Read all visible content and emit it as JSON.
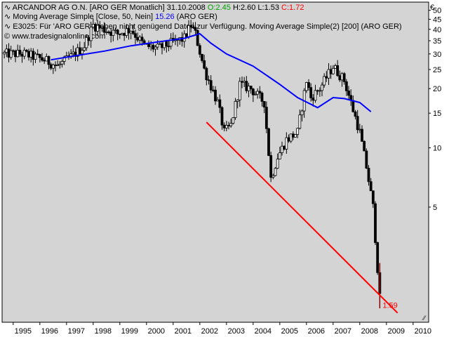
{
  "header": {
    "title_prefix": "ARCANDOR AG O.N. [ARO GER  Monatlich] 31.10.2008 ",
    "open_label": "O:2.45",
    "hl_label": " H:2.60 L:1.53 ",
    "close_label": "C:1.72",
    "ma_prefix": "Moving Average Simple [Close, 50, Nein] ",
    "ma_value": "15.26",
    "ma_suffix": " (ARO GER)",
    "warning_text": "E3025: Für 'ARO GER' stehen nicht genügend Daten zur Verfügung. Moving Average Simple(2) [200] (ARO GER)",
    "source_text": "© www.tradesignalonline.com",
    "currency_symbol": "€",
    "line_icon": "line-indicator-icon",
    "copyright_icon": "copyright-icon",
    "resize_icon": "resize-grip-icon"
  },
  "colors": {
    "background": "#d4d4d4",
    "candle_up_body": "#ffffff",
    "candle_down_body": "#000000",
    "moving_average": "#0000ff",
    "trendline": "#ff0000",
    "recent_price_line": "#8b0000",
    "open_green": "#00a000",
    "ma_blue": "#0000ff",
    "close_red": "#ff0000"
  },
  "chart_data": {
    "type": "candlestick",
    "y_scale": "log",
    "ylim": [
      1.3,
      55
    ],
    "xlim": [
      "1994-08",
      "2010-08"
    ],
    "x_ticks": [
      "1995",
      "1996",
      "1997",
      "1998",
      "1999",
      "2000",
      "2001",
      "2002",
      "2003",
      "2004",
      "2005",
      "2006",
      "2007",
      "2008",
      "2009",
      "2010"
    ],
    "y_ticks": [
      "50",
      "45",
      "40",
      "35",
      "30",
      "25",
      "20",
      "15",
      "10",
      "5"
    ],
    "last_price_label": "1.59",
    "anchor_points": [
      [
        "1994-09",
        30
      ],
      [
        "1995-06",
        30
      ],
      [
        "1996-03",
        28
      ],
      [
        "1996-09",
        26
      ],
      [
        "1997-03",
        29
      ],
      [
        "1997-09",
        33
      ],
      [
        "1998-01",
        42
      ],
      [
        "1998-06",
        40
      ],
      [
        "1998-12",
        38
      ],
      [
        "1999-06",
        40
      ],
      [
        "1999-12",
        33
      ],
      [
        "2000-06",
        32
      ],
      [
        "2000-12",
        34
      ],
      [
        "2001-06",
        36
      ],
      [
        "2001-09",
        42
      ],
      [
        "2001-11",
        38
      ],
      [
        "2002-03",
        25
      ],
      [
        "2002-09",
        17
      ],
      [
        "2002-12",
        12
      ],
      [
        "2003-03",
        13
      ],
      [
        "2003-07",
        21
      ],
      [
        "2003-12",
        20
      ],
      [
        "2004-06",
        17
      ],
      [
        "2004-09",
        7
      ],
      [
        "2004-12",
        9
      ],
      [
        "2005-04",
        11
      ],
      [
        "2005-09",
        12
      ],
      [
        "2006-01",
        22
      ],
      [
        "2006-03",
        18
      ],
      [
        "2006-07",
        20
      ],
      [
        "2007-01",
        26
      ],
      [
        "2007-06",
        22
      ],
      [
        "2007-09",
        17
      ],
      [
        "2008-01",
        12
      ],
      [
        "2008-04",
        8
      ],
      [
        "2008-07",
        5
      ],
      [
        "2008-09",
        2.45
      ],
      [
        "2008-10",
        1.72
      ]
    ],
    "moving_average": {
      "name": "Moving Average Simple [Close, 50, Nein]",
      "points": [
        [
          "1996-06",
          28
        ],
        [
          "1997-06",
          29.5
        ],
        [
          "1998-06",
          31
        ],
        [
          "1999-06",
          33
        ],
        [
          "2000-06",
          34.5
        ],
        [
          "2001-06",
          36
        ],
        [
          "2002-01",
          38
        ],
        [
          "2002-06",
          34
        ],
        [
          "2003-01",
          30
        ],
        [
          "2004-01",
          26
        ],
        [
          "2005-01",
          21
        ],
        [
          "2005-09",
          18
        ],
        [
          "2006-06",
          16
        ],
        [
          "2007-01",
          18
        ],
        [
          "2007-06",
          17.8
        ],
        [
          "2008-01",
          17
        ],
        [
          "2008-06",
          15.26
        ]
      ]
    },
    "trendline": {
      "start": [
        "2002-04",
        13.5
      ],
      "end": [
        "2009-06",
        1.45
      ]
    }
  }
}
